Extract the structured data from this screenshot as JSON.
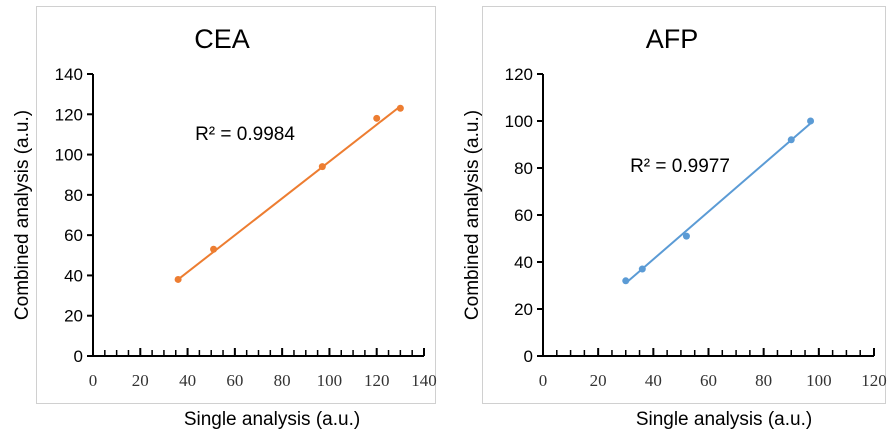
{
  "chart_data": [
    {
      "type": "scatter",
      "title": "CEA",
      "xlabel": "Single analysis (a.u.)",
      "ylabel": "Combined analysis (a.u.)",
      "xlim": [
        0,
        140
      ],
      "ylim": [
        0,
        140
      ],
      "xticks": [
        0,
        20,
        40,
        60,
        80,
        100,
        120,
        140
      ],
      "yticks": [
        0,
        20,
        40,
        60,
        80,
        100,
        120,
        140
      ],
      "series": [
        {
          "x": [
            36,
            51,
            97,
            120,
            130
          ],
          "y": [
            38,
            53,
            94,
            118,
            123
          ],
          "color": "#ED7D31"
        }
      ],
      "trendline": {
        "x": [
          36,
          130
        ],
        "y": [
          38,
          124
        ]
      },
      "annotation": "R² = 0.9984",
      "grid": false
    },
    {
      "type": "scatter",
      "title": "AFP",
      "xlabel": "Single analysis (a.u.)",
      "ylabel": "Combined analysis (a.u.)",
      "xlim": [
        0,
        120
      ],
      "ylim": [
        0,
        120
      ],
      "xticks": [
        0,
        20,
        40,
        60,
        80,
        100,
        120
      ],
      "yticks": [
        0,
        20,
        40,
        60,
        80,
        100,
        120
      ],
      "series": [
        {
          "x": [
            30,
            36,
            52,
            90,
            97
          ],
          "y": [
            32,
            37,
            51,
            92,
            100
          ],
          "color": "#5B9BD5"
        }
      ],
      "trendline": {
        "x": [
          30,
          97
        ],
        "y": [
          31,
          99
        ]
      },
      "annotation": "R² = 0.9977",
      "grid": false
    }
  ]
}
